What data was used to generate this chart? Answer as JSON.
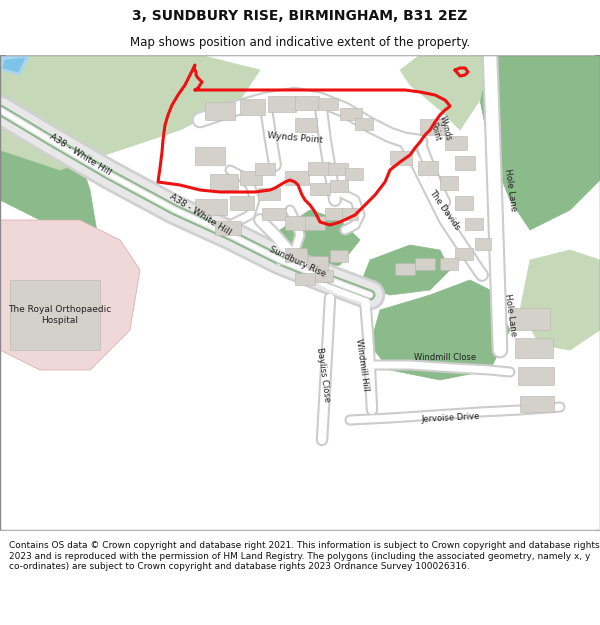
{
  "title": "3, SUNDBURY RISE, BIRMINGHAM, B31 2EZ",
  "subtitle": "Map shows position and indicative extent of the property.",
  "footer": "Contains OS data © Crown copyright and database right 2021. This information is subject to Crown copyright and database rights 2023 and is reproduced with the permission of HM Land Registry. The polygons (including the associated geometry, namely x, y co-ordinates) are subject to Crown copyright and database rights 2023 Ordnance Survey 100026316.",
  "bg_color": "#f2efe9",
  "green_dark": "#8bba8b",
  "green_light": "#c5d9b8",
  "green_med": "#a8c9a8",
  "road_white": "#ffffff",
  "road_edge": "#c8c8c8",
  "building_fill": "#d4d0ca",
  "building_edge": "#b8b4ae",
  "hospital_fill": "#f0d8d8",
  "hospital_edge": "#d4b8b8",
  "water_fill": "#aad4f0",
  "red_color": "#ee1111",
  "red_lw": 2.2,
  "title_fontsize": 10,
  "subtitle_fontsize": 8.5,
  "footer_fontsize": 6.5,
  "map_label_fontsize": 6.8,
  "map_border_color": "#888888"
}
